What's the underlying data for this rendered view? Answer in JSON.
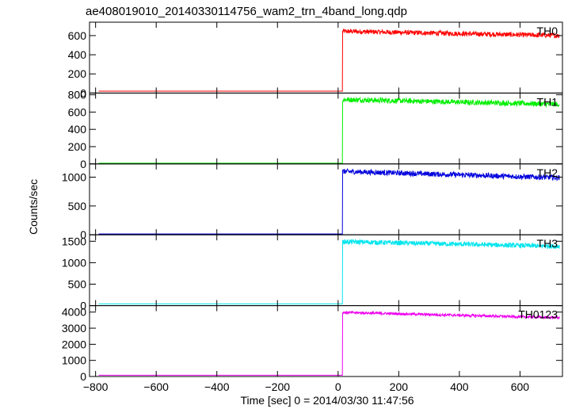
{
  "chart_data": {
    "type": "line",
    "title": "ae408019010_20140330114756_wam2_trn_4band_long.qdp",
    "xlabel": "Time [sec] 0 = 2014/03/30 11:47:56",
    "ylabel": "Counts/sec",
    "xlim": [
      -820,
      740
    ],
    "x_ticks": [
      -800,
      -600,
      -400,
      -200,
      0,
      200,
      400,
      600
    ],
    "x_range": [
      -790,
      730
    ],
    "onset_time": 15,
    "panels": [
      {
        "name": "TH0",
        "color": "#ff0000",
        "ylim": [
          0,
          740
        ],
        "y_ticks": [
          0,
          200,
          400,
          600
        ],
        "pre_level": 20,
        "peak": 645,
        "end_level": 600,
        "noise": 25
      },
      {
        "name": "TH1",
        "color": "#00ee00",
        "ylim": [
          0,
          820
        ],
        "y_ticks": [
          0,
          200,
          400,
          600,
          800
        ],
        "pre_level": 8,
        "peak": 745,
        "end_level": 690,
        "noise": 30
      },
      {
        "name": "TH2",
        "color": "#0000dd",
        "ylim": [
          0,
          1230
        ],
        "y_ticks": [
          0,
          500,
          1000
        ],
        "pre_level": 15,
        "peak": 1100,
        "end_level": 990,
        "noise": 45
      },
      {
        "name": "TH3",
        "color": "#00e5ee",
        "ylim": [
          0,
          1650
        ],
        "y_ticks": [
          0,
          500,
          1000,
          1500
        ],
        "pre_level": 40,
        "peak": 1490,
        "end_level": 1380,
        "noise": 55
      },
      {
        "name": "TH0123",
        "color": "#ee00ee",
        "ylim": [
          0,
          4400
        ],
        "y_ticks": [
          0,
          1000,
          2000,
          3000,
          4000
        ],
        "pre_level": 80,
        "peak": 3980,
        "end_level": 3650,
        "noise": 80
      }
    ]
  }
}
